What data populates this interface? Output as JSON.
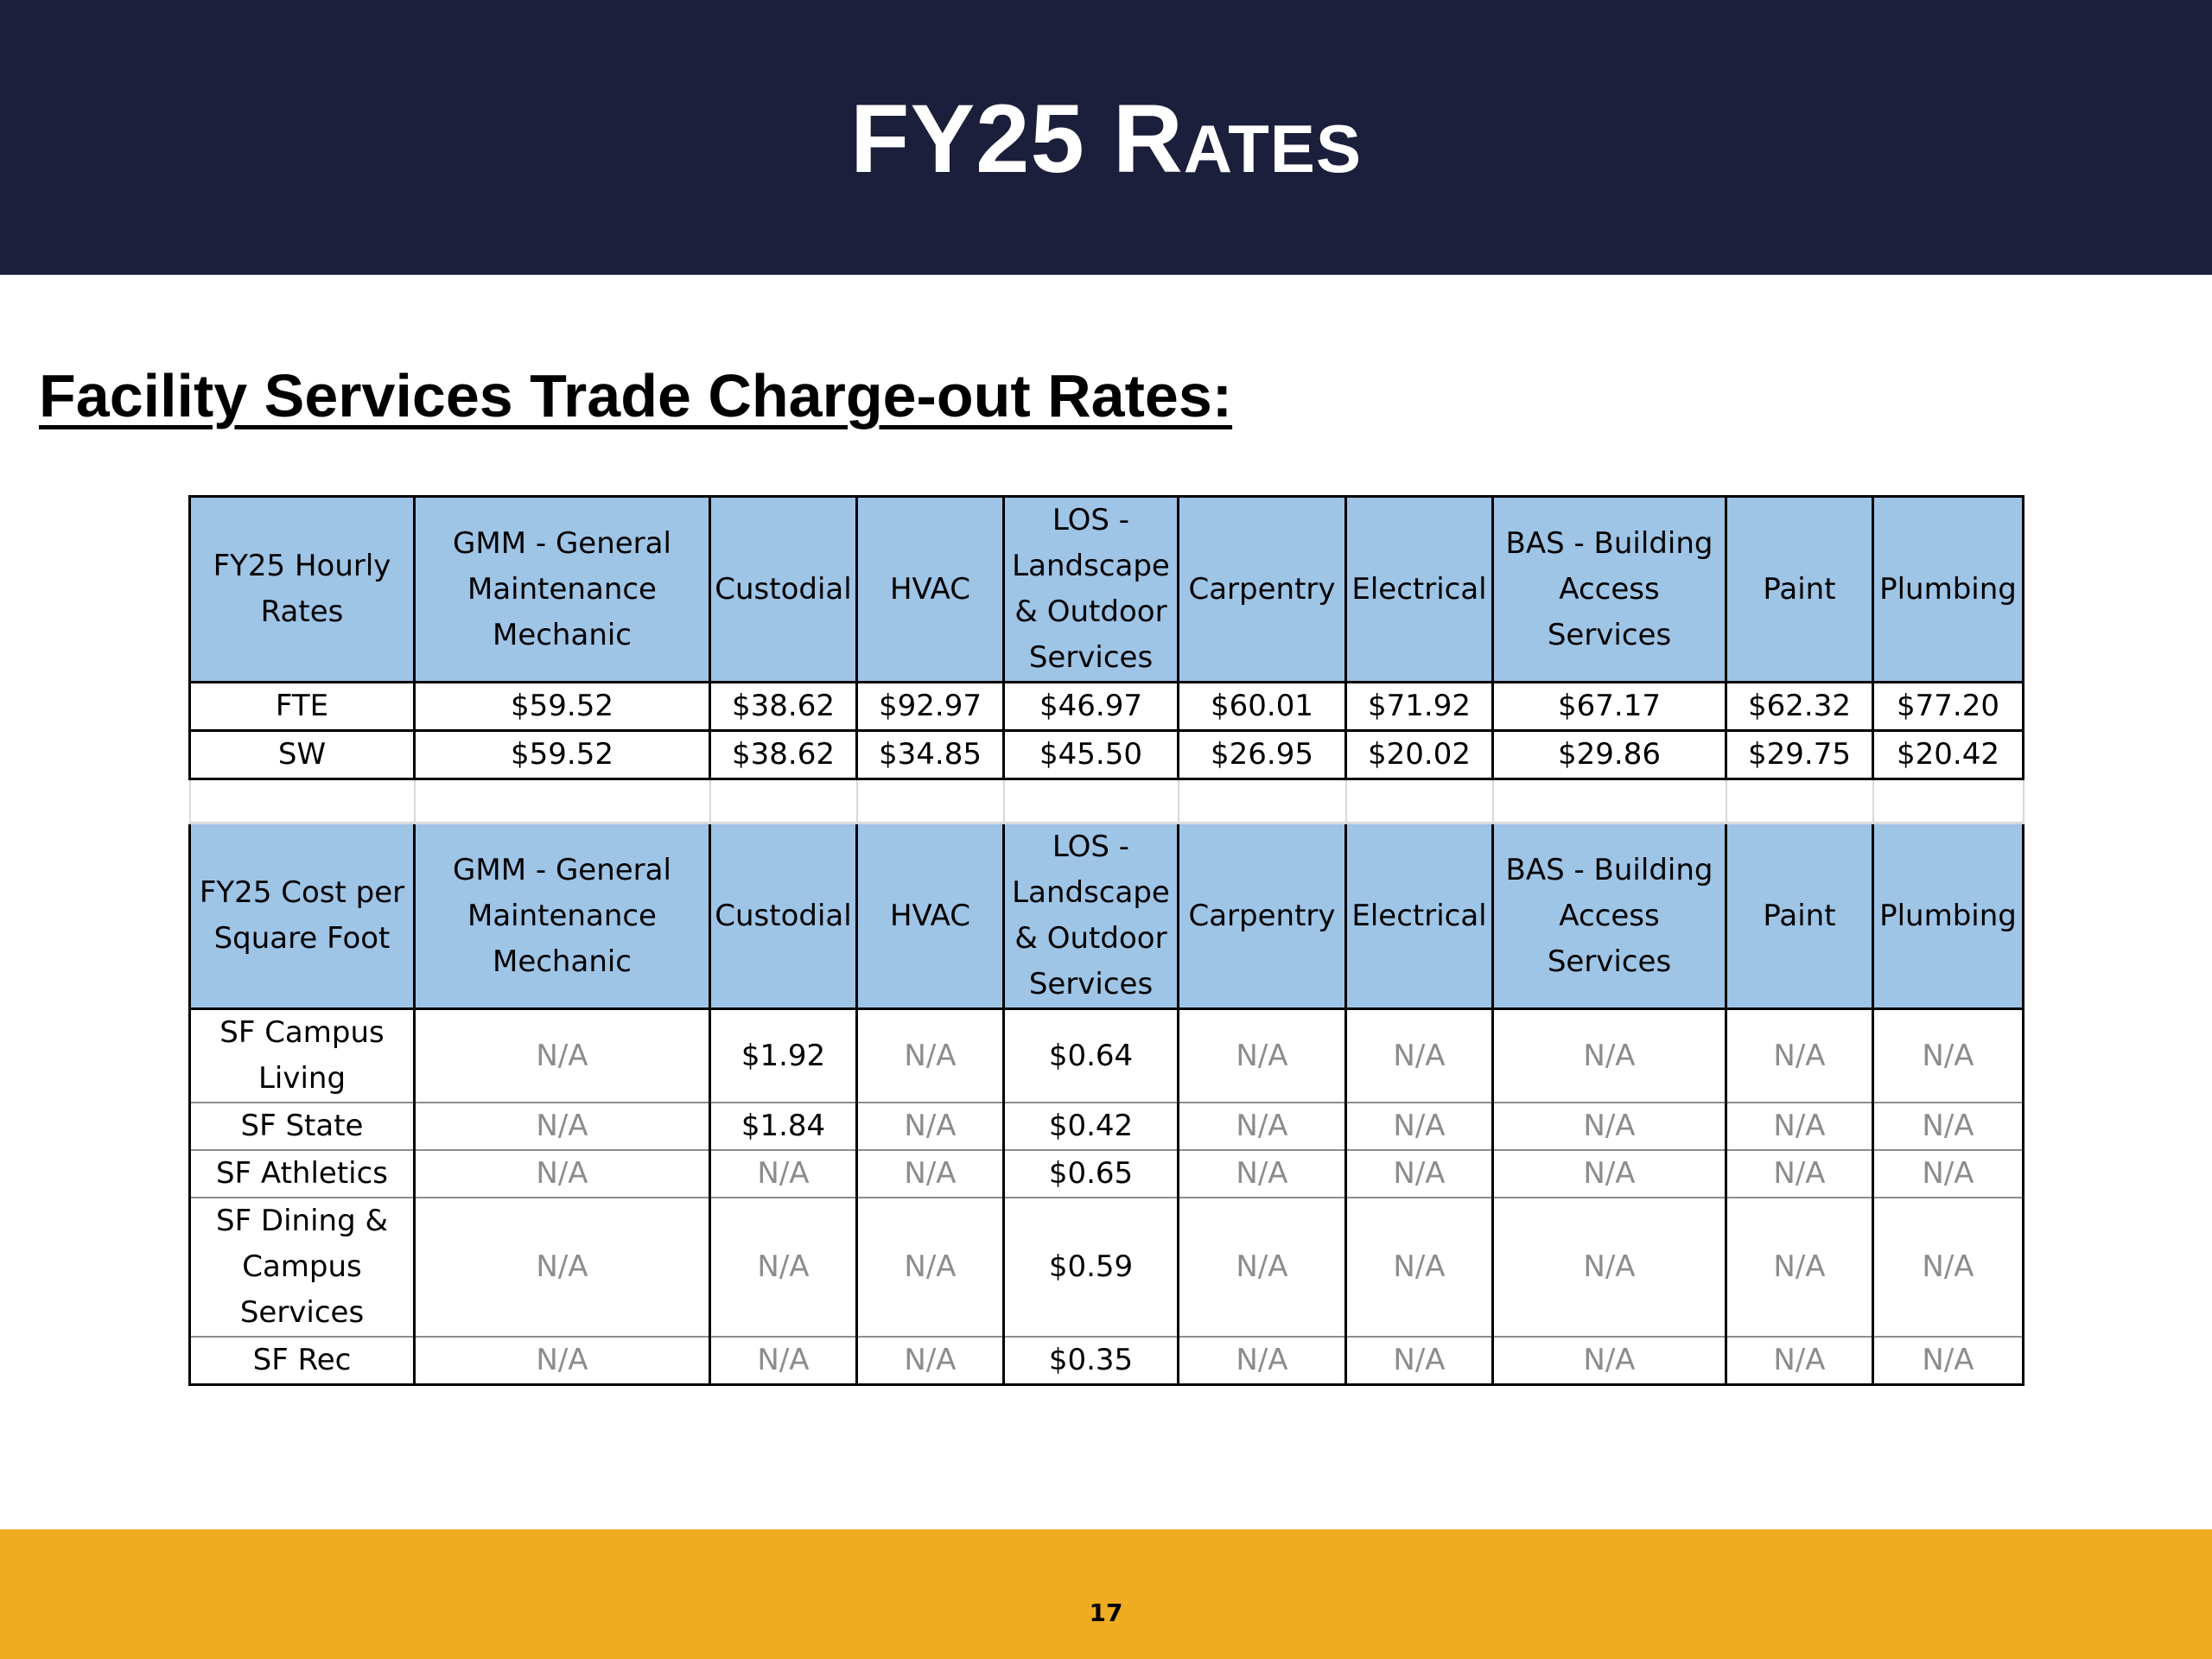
{
  "slide": {
    "title": "FY25 Rates",
    "page_number": "17"
  },
  "section_heading": "Facility Services Trade Charge-out Rates:",
  "colors": {
    "header_band": "#1b1f3b",
    "footer_band": "#efac22",
    "table_header_fill": "#9ec4e6",
    "na_text": "#8c8c8c"
  },
  "hourly_table": {
    "headers": [
      "FY25 Hourly Rates",
      "GMM - General Maintenance Mechanic",
      "Custodial",
      "HVAC",
      "LOS - Landscape & Outdoor Services",
      "Carpentry",
      "Electrical",
      "BAS - Building Access Services",
      "Paint",
      "Plumbing"
    ],
    "rows": [
      [
        "FTE",
        "$59.52",
        "$38.62",
        "$92.97",
        "$46.97",
        "$60.01",
        "$71.92",
        "$67.17",
        "$62.32",
        "$77.20"
      ],
      [
        "SW",
        "$59.52",
        "$38.62",
        "$34.85",
        "$45.50",
        "$26.95",
        "$20.02",
        "$29.86",
        "$29.75",
        "$20.42"
      ]
    ]
  },
  "sqft_table": {
    "headers": [
      "FY25 Cost per Square Foot",
      "GMM - General Maintenance Mechanic",
      "Custodial",
      "HVAC",
      "LOS - Landscape & Outdoor Services",
      "Carpentry",
      "Electrical",
      "BAS - Building Access Services",
      "Paint",
      "Plumbing"
    ],
    "rows": [
      [
        "SF Campus Living",
        "N/A",
        "$1.92",
        "N/A",
        "$0.64",
        "N/A",
        "N/A",
        "N/A",
        "N/A",
        "N/A"
      ],
      [
        "SF State",
        "N/A",
        "$1.84",
        "N/A",
        "$0.42",
        "N/A",
        "N/A",
        "N/A",
        "N/A",
        "N/A"
      ],
      [
        "SF Athletics",
        "N/A",
        "N/A",
        "N/A",
        "$0.65",
        "N/A",
        "N/A",
        "N/A",
        "N/A",
        "N/A"
      ],
      [
        "SF Dining & Campus Services",
        "N/A",
        "N/A",
        "N/A",
        "$0.59",
        "N/A",
        "N/A",
        "N/A",
        "N/A",
        "N/A"
      ],
      [
        "SF Rec",
        "N/A",
        "N/A",
        "N/A",
        "$0.35",
        "N/A",
        "N/A",
        "N/A",
        "N/A",
        "N/A"
      ]
    ]
  }
}
